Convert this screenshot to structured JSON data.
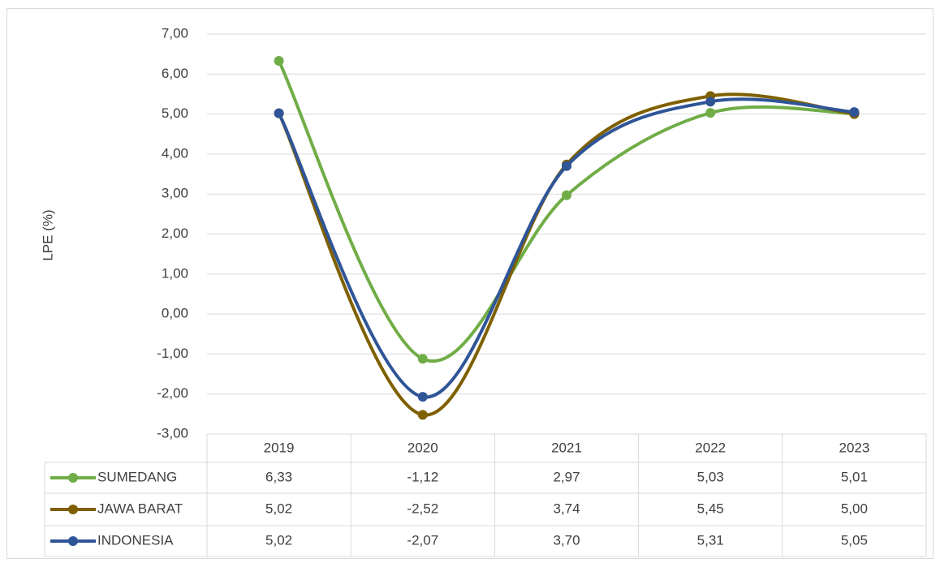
{
  "chart_data": {
    "type": "line",
    "y_label": "LPE (%)",
    "categories": [
      "2019",
      "2020",
      "2021",
      "2022",
      "2023"
    ],
    "series": [
      {
        "name": "SUMEDANG",
        "color": "#70ad47",
        "values": [
          6.33,
          -1.12,
          2.97,
          5.03,
          5.01
        ],
        "value_labels": [
          "6,33",
          "-1,12",
          "2,97",
          "5,03",
          "5,01"
        ]
      },
      {
        "name": "JAWA BARAT",
        "color": "#7f6000",
        "values": [
          5.02,
          -2.52,
          3.74,
          5.45,
          5.0
        ],
        "value_labels": [
          "5,02",
          "-2,52",
          "3,74",
          "5,45",
          "5,00"
        ]
      },
      {
        "name": "INDONESIA",
        "color": "#2f5597",
        "values": [
          5.02,
          -2.07,
          3.7,
          5.31,
          5.05
        ],
        "value_labels": [
          "5,02",
          "-2,07",
          "3,70",
          "5,31",
          "5,05"
        ]
      }
    ],
    "ylim": [
      -3,
      7
    ],
    "yticks": [
      {
        "value": -3,
        "label": "-3,00"
      },
      {
        "value": -2,
        "label": "-2,00"
      },
      {
        "value": -1,
        "label": "-1,00"
      },
      {
        "value": 0,
        "label": "0,00"
      },
      {
        "value": 1,
        "label": "1,00"
      },
      {
        "value": 2,
        "label": "2,00"
      },
      {
        "value": 3,
        "label": "3,00"
      },
      {
        "value": 4,
        "label": "4,00"
      },
      {
        "value": 5,
        "label": "5,00"
      },
      {
        "value": 6,
        "label": "6,00"
      },
      {
        "value": 7,
        "label": "7,00"
      }
    ],
    "grid": true,
    "smooth": true
  }
}
